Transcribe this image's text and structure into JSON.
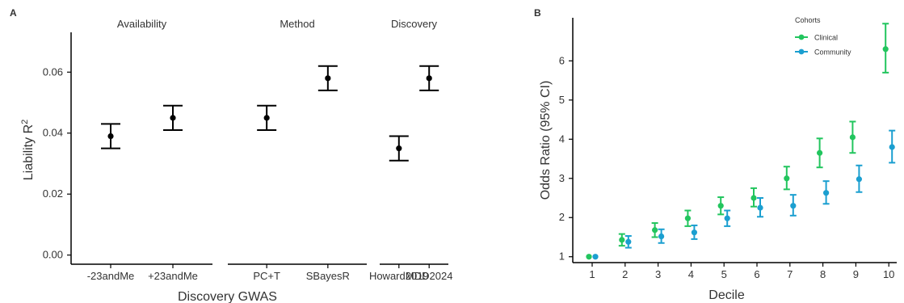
{
  "chart_data": [
    {
      "panel_label": "A",
      "type": "scatter",
      "ylabel": "Liability R",
      "ylabel_sup": "2",
      "xlabel": "Discovery GWAS",
      "ylim": [
        -0.003,
        0.072
      ],
      "yticks": [
        "0.00",
        "0.02",
        "0.04",
        "0.06"
      ],
      "ytick_values": [
        0.0,
        0.02,
        0.04,
        0.06
      ],
      "facets": [
        {
          "title": "Availability",
          "categories": [
            "-23andMe",
            "+23andMe"
          ],
          "values": [
            0.039,
            0.045
          ],
          "lower": [
            0.035,
            0.041
          ],
          "upper": [
            0.043,
            0.049
          ]
        },
        {
          "title": "Method",
          "categories": [
            "PC+T",
            "SBayesR"
          ],
          "values": [
            0.045,
            0.058
          ],
          "lower": [
            0.041,
            0.054
          ],
          "upper": [
            0.049,
            0.062
          ]
        },
        {
          "title": "Discovery",
          "categories": [
            "Howard2019",
            "MDD2024"
          ],
          "values": [
            0.035,
            0.058
          ],
          "lower": [
            0.031,
            0.054
          ],
          "upper": [
            0.039,
            0.062
          ]
        }
      ],
      "grid": false,
      "colors": {
        "points": "#000000"
      }
    },
    {
      "panel_label": "B",
      "type": "scatter",
      "ylabel": "Odds Ratio (95% CI)",
      "xlabel": "Decile",
      "categories": [
        "1",
        "2",
        "3",
        "4",
        "5",
        "6",
        "7",
        "8",
        "9",
        "10"
      ],
      "ylim": [
        0.85,
        7.1
      ],
      "yticks": [
        "1",
        "2",
        "3",
        "4",
        "5",
        "6"
      ],
      "ytick_values": [
        1,
        2,
        3,
        4,
        5,
        6
      ],
      "legend": {
        "title": "Cohorts",
        "placement": "top-right"
      },
      "series": [
        {
          "name": "Clinical",
          "color": "#22c55e",
          "values": [
            1.0,
            1.43,
            1.68,
            1.98,
            2.3,
            2.5,
            3.0,
            3.65,
            4.05,
            6.3
          ],
          "lower": [
            1.0,
            1.28,
            1.5,
            1.78,
            2.08,
            2.28,
            2.72,
            3.28,
            3.65,
            5.7
          ],
          "upper": [
            1.0,
            1.58,
            1.86,
            2.18,
            2.52,
            2.75,
            3.3,
            4.02,
            4.45,
            6.95
          ]
        },
        {
          "name": "Community",
          "color": "#1b9fd0",
          "values": [
            1.0,
            1.38,
            1.52,
            1.62,
            1.98,
            2.25,
            2.3,
            2.63,
            2.98,
            3.8
          ],
          "lower": [
            1.0,
            1.23,
            1.35,
            1.45,
            1.78,
            2.02,
            2.05,
            2.35,
            2.65,
            3.4
          ],
          "upper": [
            1.0,
            1.53,
            1.7,
            1.8,
            2.18,
            2.5,
            2.58,
            2.93,
            3.33,
            4.22
          ]
        }
      ],
      "grid": false
    }
  ]
}
